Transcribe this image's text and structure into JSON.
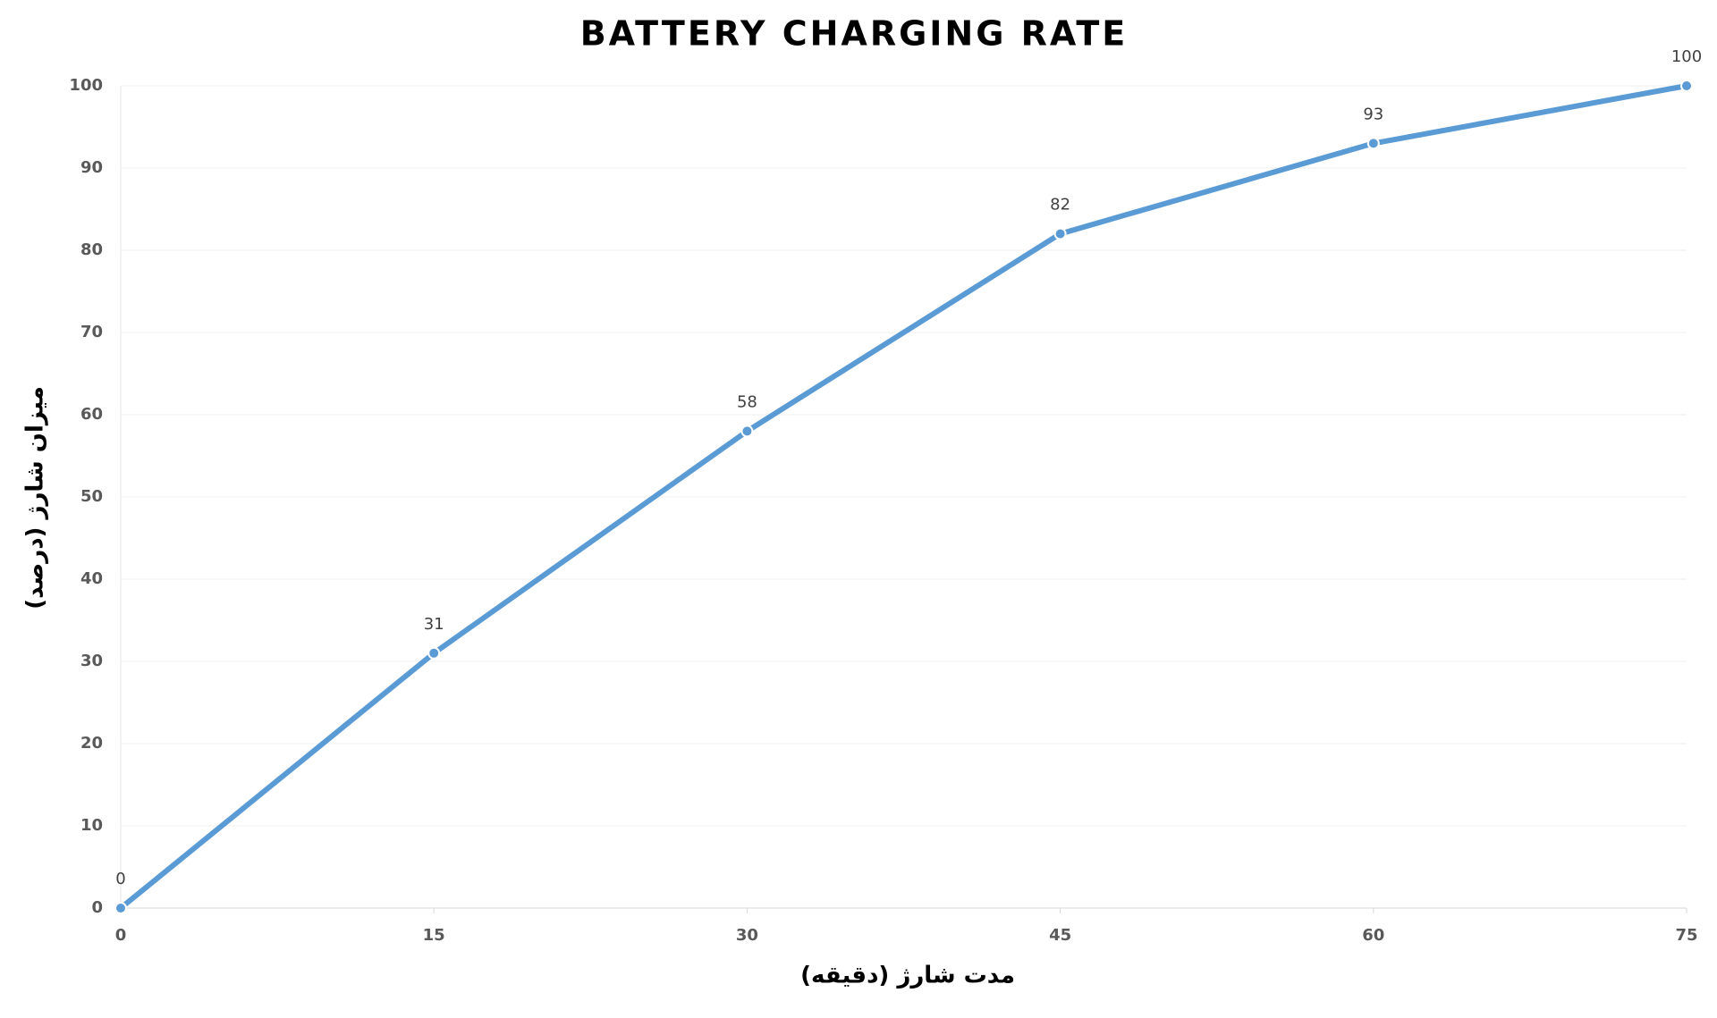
{
  "chart_data": {
    "type": "line",
    "title": "BATTERY CHARGING RATE",
    "x_label": "مدت شارژ (دقیقه)",
    "y_label": "میزان شارژ (درصد)",
    "x": [
      0,
      15,
      30,
      45,
      60,
      75
    ],
    "values": [
      0,
      31,
      58,
      82,
      93,
      100
    ],
    "color": "#5b9bd5",
    "xlim": [
      0,
      75
    ],
    "xticks": [
      0,
      15,
      30,
      45,
      60,
      75
    ],
    "ylim": [
      0,
      100
    ],
    "yticks": [
      0,
      10,
      20,
      30,
      40,
      50,
      60,
      70,
      80,
      90,
      100
    ],
    "grid": true
  }
}
